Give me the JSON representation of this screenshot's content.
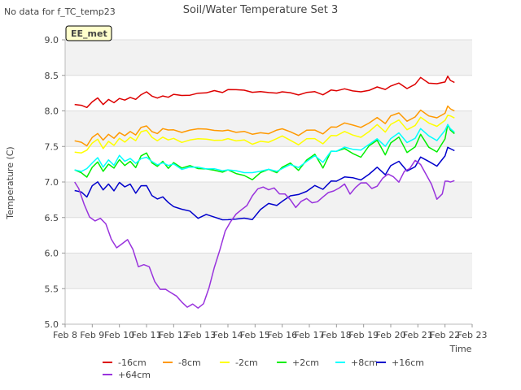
{
  "chart_data": {
    "type": "line",
    "title": "Soil/Water Temperature Set 3",
    "note": "No data for f_TC_temp23",
    "badge": "EE_met",
    "xlabel": "Time",
    "ylabel": "Temperature (C)",
    "xlim": [
      8,
      23
    ],
    "ylim": [
      5.0,
      9.0
    ],
    "xticks": [
      8,
      9,
      10,
      11,
      12,
      13,
      14,
      15,
      16,
      17,
      18,
      19,
      20,
      21,
      22,
      23
    ],
    "xtick_labels": [
      "Feb 8",
      "Feb 9",
      "Feb 10",
      "Feb 11",
      "Feb 12",
      "Feb 13",
      "Feb 14",
      "Feb 15",
      "Feb 16",
      "Feb 17",
      "Feb 18",
      "Feb 19",
      "Feb 20",
      "Feb 21",
      "Feb 22",
      "Feb 23"
    ],
    "yticks": [
      5.0,
      5.5,
      6.0,
      6.5,
      7.0,
      7.5,
      8.0,
      8.5,
      9.0
    ],
    "ytick_labels": [
      "5.0",
      "5.5",
      "6.0",
      "6.5",
      "7.0",
      "7.5",
      "8.0",
      "8.5",
      "9.0"
    ],
    "series": [
      {
        "name": "-16cm",
        "color": "#dd0000",
        "x": [
          8.35,
          8.6,
          8.8,
          9.0,
          9.2,
          9.4,
          9.6,
          9.8,
          10.0,
          10.2,
          10.4,
          10.6,
          10.8,
          11.0,
          11.2,
          11.4,
          11.6,
          11.8,
          12.0,
          12.3,
          12.6,
          12.9,
          13.2,
          13.5,
          13.8,
          14.0,
          14.3,
          14.6,
          14.9,
          15.2,
          15.5,
          15.8,
          16.0,
          16.3,
          16.6,
          16.9,
          17.2,
          17.5,
          17.8,
          18.0,
          18.3,
          18.6,
          18.9,
          19.2,
          19.5,
          19.8,
          20.0,
          20.3,
          20.6,
          20.9,
          21.1,
          21.4,
          21.7,
          22.0,
          22.1,
          22.2,
          22.35
        ],
        "y": [
          8.09,
          8.07,
          8.06,
          8.12,
          8.18,
          8.1,
          8.15,
          8.12,
          8.18,
          8.14,
          8.2,
          8.16,
          8.22,
          8.28,
          8.2,
          8.18,
          8.22,
          8.18,
          8.24,
          8.22,
          8.21,
          8.26,
          8.25,
          8.28,
          8.27,
          8.29,
          8.3,
          8.3,
          8.25,
          8.28,
          8.26,
          8.24,
          8.28,
          8.25,
          8.22,
          8.27,
          8.26,
          8.23,
          8.3,
          8.27,
          8.32,
          8.28,
          8.26,
          8.3,
          8.33,
          8.3,
          8.36,
          8.38,
          8.32,
          8.38,
          8.46,
          8.4,
          8.38,
          8.4,
          8.5,
          8.42,
          8.4
        ]
      },
      {
        "name": "-8cm",
        "color": "#ff9900",
        "x": [
          8.35,
          8.6,
          8.8,
          9.0,
          9.2,
          9.4,
          9.6,
          9.8,
          10.0,
          10.2,
          10.4,
          10.6,
          10.8,
          11.0,
          11.2,
          11.4,
          11.6,
          11.8,
          12.0,
          12.3,
          12.6,
          12.9,
          13.2,
          13.5,
          13.8,
          14.0,
          14.3,
          14.6,
          14.9,
          15.2,
          15.5,
          15.8,
          16.0,
          16.3,
          16.6,
          16.9,
          17.2,
          17.5,
          17.8,
          18.0,
          18.3,
          18.6,
          18.9,
          19.2,
          19.5,
          19.8,
          20.0,
          20.3,
          20.6,
          20.9,
          21.1,
          21.4,
          21.7,
          22.0,
          22.1,
          22.2,
          22.35
        ],
        "y": [
          7.58,
          7.55,
          7.52,
          7.62,
          7.68,
          7.6,
          7.66,
          7.62,
          7.7,
          7.64,
          7.72,
          7.66,
          7.76,
          7.8,
          7.7,
          7.68,
          7.76,
          7.72,
          7.74,
          7.7,
          7.72,
          7.76,
          7.74,
          7.72,
          7.73,
          7.72,
          7.7,
          7.72,
          7.66,
          7.7,
          7.68,
          7.72,
          7.76,
          7.7,
          7.65,
          7.74,
          7.72,
          7.68,
          7.78,
          7.76,
          7.84,
          7.8,
          7.76,
          7.84,
          7.9,
          7.82,
          7.94,
          7.96,
          7.86,
          7.92,
          8.0,
          7.94,
          7.9,
          7.96,
          8.08,
          8.02,
          8.0
        ]
      },
      {
        "name": "-2cm",
        "color": "#ffff00",
        "x": [
          8.35,
          8.6,
          8.8,
          9.0,
          9.2,
          9.4,
          9.6,
          9.8,
          10.0,
          10.2,
          10.4,
          10.6,
          10.8,
          11.0,
          11.2,
          11.4,
          11.6,
          11.8,
          12.0,
          12.3,
          12.6,
          12.9,
          13.2,
          13.5,
          13.8,
          14.0,
          14.3,
          14.6,
          14.9,
          15.2,
          15.5,
          15.8,
          16.0,
          16.3,
          16.6,
          16.9,
          17.2,
          17.5,
          17.8,
          18.0,
          18.3,
          18.6,
          18.9,
          19.2,
          19.5,
          19.8,
          20.0,
          20.3,
          20.6,
          20.9,
          21.1,
          21.4,
          21.7,
          22.0,
          22.1,
          22.2,
          22.35
        ],
        "y": [
          7.42,
          7.4,
          7.46,
          7.54,
          7.6,
          7.48,
          7.56,
          7.52,
          7.62,
          7.55,
          7.64,
          7.58,
          7.7,
          7.74,
          7.62,
          7.58,
          7.64,
          7.58,
          7.62,
          7.56,
          7.58,
          7.62,
          7.6,
          7.58,
          7.6,
          7.6,
          7.58,
          7.6,
          7.52,
          7.58,
          7.56,
          7.6,
          7.66,
          7.58,
          7.52,
          7.62,
          7.6,
          7.54,
          7.66,
          7.64,
          7.72,
          7.66,
          7.62,
          7.72,
          7.8,
          7.7,
          7.82,
          7.86,
          7.74,
          7.8,
          7.9,
          7.84,
          7.78,
          7.86,
          7.95,
          7.92,
          7.9
        ]
      },
      {
        "name": "+2cm",
        "color": "#00ee00",
        "x": [
          8.35,
          8.6,
          8.8,
          9.0,
          9.2,
          9.4,
          9.6,
          9.8,
          10.0,
          10.2,
          10.4,
          10.6,
          10.8,
          11.0,
          11.2,
          11.4,
          11.6,
          11.8,
          12.0,
          12.3,
          12.6,
          12.9,
          13.2,
          13.5,
          13.8,
          14.0,
          14.3,
          14.6,
          14.9,
          15.2,
          15.5,
          15.8,
          16.0,
          16.3,
          16.6,
          16.9,
          17.2,
          17.5,
          17.8,
          18.0,
          18.3,
          18.6,
          18.9,
          19.2,
          19.5,
          19.8,
          20.0,
          20.3,
          20.6,
          20.9,
          21.1,
          21.4,
          21.7,
          22.0,
          22.1,
          22.2,
          22.35
        ],
        "y": [
          7.17,
          7.12,
          7.08,
          7.2,
          7.28,
          7.16,
          7.24,
          7.2,
          7.32,
          7.22,
          7.3,
          7.2,
          7.36,
          7.42,
          7.26,
          7.22,
          7.3,
          7.18,
          7.28,
          7.2,
          7.22,
          7.2,
          7.18,
          7.16,
          7.15,
          7.16,
          7.12,
          7.1,
          7.02,
          7.14,
          7.18,
          7.12,
          7.22,
          7.26,
          7.16,
          7.32,
          7.38,
          7.2,
          7.44,
          7.42,
          7.48,
          7.4,
          7.34,
          7.52,
          7.58,
          7.38,
          7.56,
          7.62,
          7.42,
          7.5,
          7.66,
          7.5,
          7.42,
          7.6,
          7.82,
          7.72,
          7.68
        ]
      },
      {
        "name": "+8cm",
        "color": "#00ffff",
        "x": [
          8.35,
          8.6,
          8.8,
          9.0,
          9.2,
          9.4,
          9.6,
          9.8,
          10.0,
          10.2,
          10.4,
          10.6,
          10.8,
          11.0,
          11.2,
          11.4,
          11.6,
          11.8,
          12.0,
          12.3,
          12.6,
          12.9,
          13.2,
          13.5,
          13.8,
          14.0,
          14.3,
          14.6,
          14.9,
          15.2,
          15.5,
          15.8,
          16.0,
          16.3,
          16.6,
          16.9,
          17.2,
          17.5,
          17.8,
          18.0,
          18.3,
          18.6,
          18.9,
          19.2,
          19.5,
          19.8,
          20.0,
          20.3,
          20.6,
          20.9,
          21.1,
          21.4,
          21.7,
          22.0,
          22.1,
          22.2,
          22.35
        ],
        "y": [
          7.17,
          7.14,
          7.2,
          7.26,
          7.34,
          7.22,
          7.3,
          7.24,
          7.38,
          7.28,
          7.34,
          7.26,
          7.32,
          7.36,
          7.28,
          7.24,
          7.28,
          7.22,
          7.26,
          7.18,
          7.2,
          7.22,
          7.18,
          7.18,
          7.17,
          7.16,
          7.16,
          7.14,
          7.12,
          7.16,
          7.18,
          7.14,
          7.2,
          7.24,
          7.2,
          7.3,
          7.36,
          7.28,
          7.44,
          7.42,
          7.5,
          7.46,
          7.44,
          7.54,
          7.6,
          7.5,
          7.62,
          7.68,
          7.56,
          7.62,
          7.74,
          7.66,
          7.58,
          7.72,
          7.82,
          7.74,
          7.7
        ]
      },
      {
        "name": "+16cm",
        "color": "#0000cc",
        "x": [
          8.35,
          8.6,
          8.8,
          9.0,
          9.2,
          9.4,
          9.6,
          9.8,
          10.0,
          10.2,
          10.4,
          10.6,
          10.8,
          11.0,
          11.2,
          11.4,
          11.6,
          11.8,
          12.0,
          12.3,
          12.6,
          12.9,
          13.2,
          13.5,
          13.8,
          14.0,
          14.3,
          14.6,
          14.9,
          15.2,
          15.5,
          15.8,
          16.0,
          16.3,
          16.6,
          16.9,
          17.2,
          17.5,
          17.8,
          18.0,
          18.3,
          18.6,
          18.9,
          19.2,
          19.5,
          19.8,
          20.0,
          20.3,
          20.6,
          20.9,
          21.1,
          21.4,
          21.7,
          22.0,
          22.1,
          22.2,
          22.35
        ],
        "y": [
          6.88,
          6.85,
          6.8,
          6.94,
          7.0,
          6.9,
          6.96,
          6.88,
          7.0,
          6.92,
          6.98,
          6.84,
          6.94,
          6.96,
          6.8,
          6.76,
          6.8,
          6.7,
          6.66,
          6.62,
          6.58,
          6.5,
          6.54,
          6.5,
          6.48,
          6.46,
          6.48,
          6.5,
          6.46,
          6.62,
          6.7,
          6.66,
          6.74,
          6.8,
          6.82,
          6.88,
          6.94,
          6.9,
          7.02,
          7.0,
          7.08,
          7.06,
          7.02,
          7.12,
          7.2,
          7.1,
          7.24,
          7.28,
          7.16,
          7.22,
          7.34,
          7.3,
          7.22,
          7.36,
          7.5,
          7.46,
          7.44
        ]
      },
      {
        "name": "+64cm",
        "color": "#9933dd",
        "x": [
          8.35,
          8.5,
          8.7,
          8.9,
          9.1,
          9.3,
          9.5,
          9.7,
          9.9,
          10.1,
          10.3,
          10.5,
          10.7,
          10.9,
          11.1,
          11.3,
          11.5,
          11.7,
          11.9,
          12.1,
          12.3,
          12.5,
          12.7,
          12.9,
          13.1,
          13.3,
          13.5,
          13.7,
          13.9,
          14.1,
          14.3,
          14.5,
          14.7,
          14.9,
          15.1,
          15.3,
          15.5,
          15.7,
          15.9,
          16.1,
          16.3,
          16.5,
          16.7,
          16.9,
          17.1,
          17.3,
          17.5,
          17.7,
          17.9,
          18.1,
          18.3,
          18.5,
          18.7,
          18.9,
          19.1,
          19.3,
          19.5,
          19.7,
          19.9,
          20.1,
          20.3,
          20.5,
          20.7,
          20.9,
          21.1,
          21.3,
          21.5,
          21.7,
          21.9,
          22.0,
          22.1,
          22.2,
          22.35
        ],
        "y": [
          7.0,
          6.9,
          6.7,
          6.5,
          6.45,
          6.5,
          6.4,
          6.2,
          6.08,
          6.12,
          6.2,
          6.05,
          5.8,
          5.85,
          5.8,
          5.6,
          5.5,
          5.48,
          5.45,
          5.4,
          5.3,
          5.25,
          5.28,
          5.22,
          5.3,
          5.5,
          5.8,
          6.05,
          6.3,
          6.45,
          6.55,
          6.6,
          6.68,
          6.8,
          6.9,
          6.94,
          6.88,
          6.92,
          6.84,
          6.82,
          6.76,
          6.64,
          6.72,
          6.78,
          6.7,
          6.72,
          6.8,
          6.84,
          6.88,
          6.92,
          6.96,
          6.84,
          6.92,
          6.98,
          7.0,
          6.9,
          6.94,
          7.06,
          7.1,
          7.08,
          7.0,
          7.14,
          7.2,
          7.3,
          7.24,
          7.12,
          6.96,
          6.76,
          6.84,
          7.0,
          7.02,
          7.0,
          7.01
        ]
      }
    ]
  }
}
